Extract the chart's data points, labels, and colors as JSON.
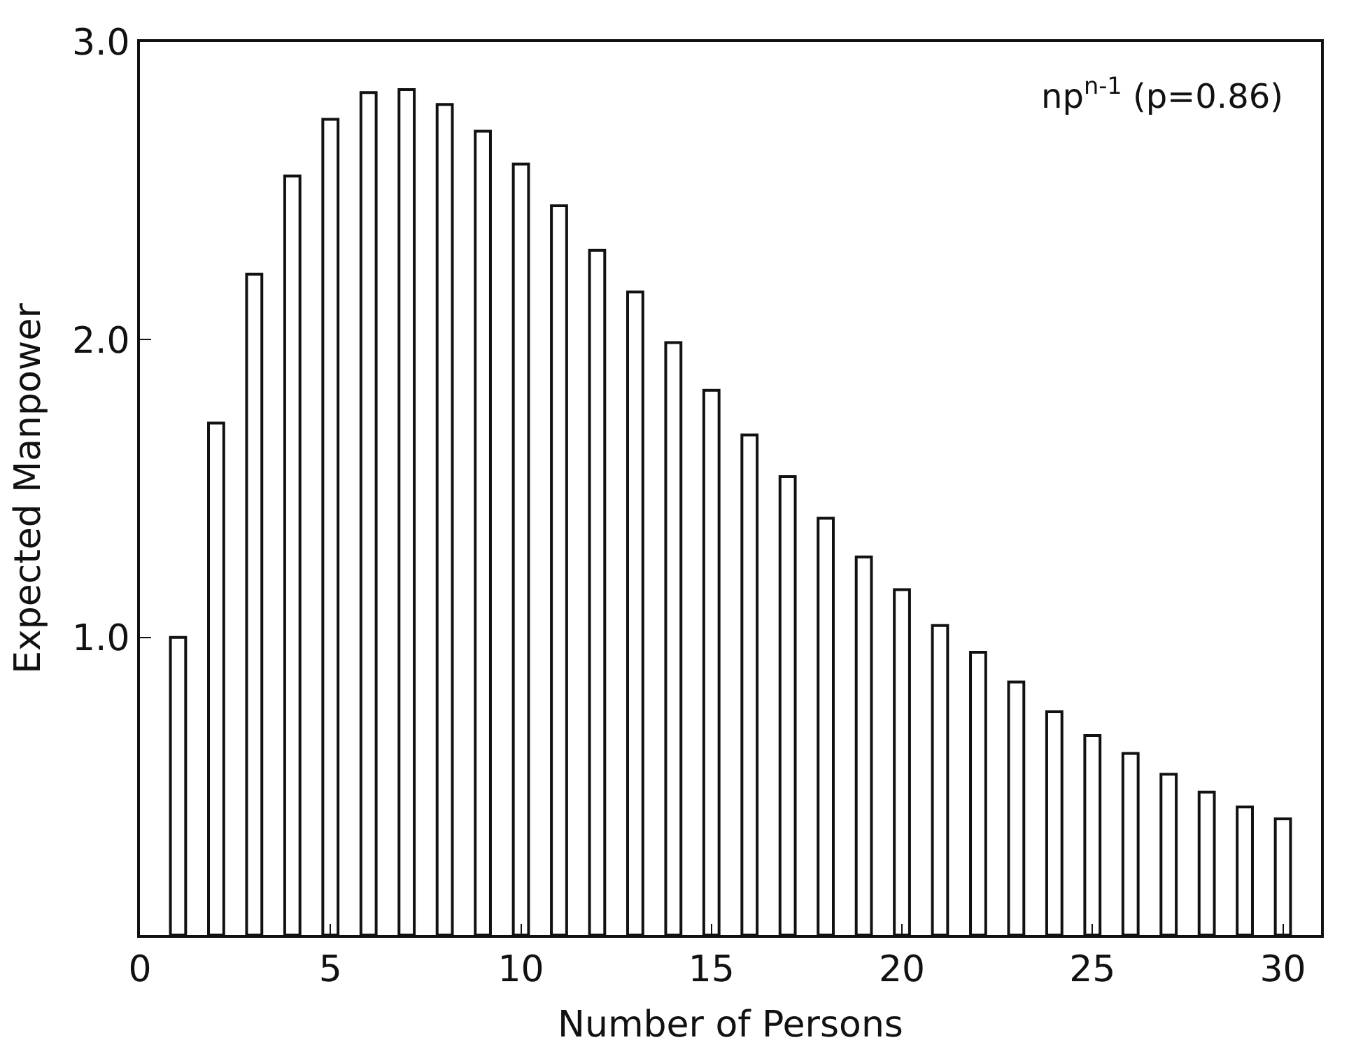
{
  "chart_data": {
    "type": "bar",
    "xlabel": "Number of Persons",
    "ylabel": "Expected Manpower",
    "annotations": [
      "np$^{n-1}$ (p=0.86)"
    ],
    "x": [
      1,
      2,
      3,
      4,
      5,
      6,
      7,
      8,
      9,
      10,
      11,
      12,
      13,
      14,
      15,
      16,
      17,
      18,
      19,
      20,
      21,
      22,
      23,
      24,
      25,
      26,
      27,
      28,
      29,
      30
    ],
    "series": [
      {
        "color": "#ffffff",
        "values": [
          1.0,
          1.72,
          2.22,
          2.55,
          2.74,
          2.83,
          2.84,
          2.79,
          2.7,
          2.59,
          2.45,
          2.3,
          2.16,
          1.99,
          1.83,
          1.68,
          1.54,
          1.4,
          1.27,
          1.16,
          1.04,
          0.95,
          0.85,
          0.75,
          0.67,
          0.61,
          0.54,
          0.48,
          0.43,
          0.39
        ]
      }
    ],
    "xlim": [
      0,
      31
    ],
    "xticks": [
      0,
      5,
      10,
      15,
      20,
      25,
      30
    ],
    "ylim": [
      0,
      3.0
    ],
    "yticks": [
      {
        "value": 0,
        "label": null
      },
      {
        "value": 1.0,
        "label": "1.0"
      },
      {
        "value": 2.0,
        "label": "2.0"
      },
      {
        "value": 3.0,
        "label": "3.0"
      }
    ],
    "tick_labels": "xy"
  }
}
